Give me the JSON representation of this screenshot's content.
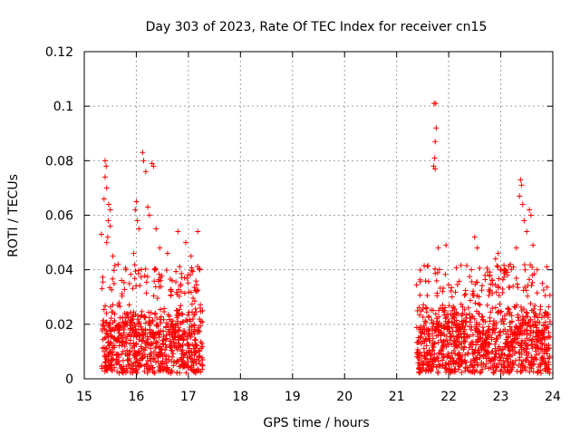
{
  "chart_data": {
    "type": "scatter",
    "title": "Day 303 of 2023, Rate Of TEC Index for receiver cn15",
    "xlabel": "GPS time / hours",
    "ylabel": "ROTI / TECUs",
    "xlim": [
      15,
      24
    ],
    "ylim": [
      0,
      0.12
    ],
    "xticks": [
      15,
      16,
      17,
      18,
      19,
      20,
      21,
      22,
      23,
      24
    ],
    "yticks": [
      0,
      0.02,
      0.04,
      0.06,
      0.08,
      0.1,
      0.12
    ],
    "ytick_labels": [
      "0",
      "0.02",
      "0.04",
      "0.06",
      "0.08",
      "0.1",
      "0.12"
    ],
    "grid": true,
    "marker": "+",
    "color": "#ff0000",
    "series": [
      {
        "name": "ROTI cn15",
        "segments": [
          {
            "x_start": 15.33,
            "x_end": 17.28,
            "typical_min": 0.002,
            "typical_max": 0.03
          },
          {
            "x_start": 21.38,
            "x_end": 23.95,
            "typical_min": 0.002,
            "typical_max": 0.03
          }
        ],
        "notable_points": [
          {
            "x": 15.4,
            "y": 0.08
          },
          {
            "x": 15.42,
            "y": 0.078
          },
          {
            "x": 15.4,
            "y": 0.074
          },
          {
            "x": 15.43,
            "y": 0.07
          },
          {
            "x": 15.38,
            "y": 0.066
          },
          {
            "x": 15.47,
            "y": 0.064
          },
          {
            "x": 15.5,
            "y": 0.062
          },
          {
            "x": 15.46,
            "y": 0.058
          },
          {
            "x": 15.5,
            "y": 0.056
          },
          {
            "x": 15.33,
            "y": 0.053
          },
          {
            "x": 15.45,
            "y": 0.052
          },
          {
            "x": 15.43,
            "y": 0.05
          },
          {
            "x": 15.55,
            "y": 0.045
          },
          {
            "x": 15.65,
            "y": 0.042
          },
          {
            "x": 15.8,
            "y": 0.04
          },
          {
            "x": 15.95,
            "y": 0.046
          },
          {
            "x": 15.98,
            "y": 0.062
          },
          {
            "x": 16.0,
            "y": 0.065
          },
          {
            "x": 16.02,
            "y": 0.058
          },
          {
            "x": 16.05,
            "y": 0.055
          },
          {
            "x": 16.12,
            "y": 0.083
          },
          {
            "x": 16.14,
            "y": 0.08
          },
          {
            "x": 16.18,
            "y": 0.076
          },
          {
            "x": 16.22,
            "y": 0.063
          },
          {
            "x": 16.3,
            "y": 0.079
          },
          {
            "x": 16.33,
            "y": 0.078
          },
          {
            "x": 16.25,
            "y": 0.06
          },
          {
            "x": 16.38,
            "y": 0.055
          },
          {
            "x": 16.45,
            "y": 0.048
          },
          {
            "x": 16.6,
            "y": 0.046
          },
          {
            "x": 16.8,
            "y": 0.054
          },
          {
            "x": 16.95,
            "y": 0.05
          },
          {
            "x": 17.05,
            "y": 0.045
          },
          {
            "x": 17.18,
            "y": 0.054
          },
          {
            "x": 17.22,
            "y": 0.04
          },
          {
            "x": 21.72,
            "y": 0.101
          },
          {
            "x": 21.75,
            "y": 0.101
          },
          {
            "x": 21.76,
            "y": 0.092
          },
          {
            "x": 21.74,
            "y": 0.087
          },
          {
            "x": 21.73,
            "y": 0.081
          },
          {
            "x": 21.71,
            "y": 0.078
          },
          {
            "x": 21.74,
            "y": 0.077
          },
          {
            "x": 21.95,
            "y": 0.049
          },
          {
            "x": 21.8,
            "y": 0.048
          },
          {
            "x": 22.5,
            "y": 0.052
          },
          {
            "x": 22.55,
            "y": 0.048
          },
          {
            "x": 22.95,
            "y": 0.046
          },
          {
            "x": 22.9,
            "y": 0.044
          },
          {
            "x": 23.3,
            "y": 0.048
          },
          {
            "x": 23.38,
            "y": 0.073
          },
          {
            "x": 23.4,
            "y": 0.071
          },
          {
            "x": 23.36,
            "y": 0.067
          },
          {
            "x": 23.42,
            "y": 0.064
          },
          {
            "x": 23.55,
            "y": 0.062
          },
          {
            "x": 23.58,
            "y": 0.06
          },
          {
            "x": 23.45,
            "y": 0.058
          },
          {
            "x": 23.5,
            "y": 0.054
          },
          {
            "x": 23.62,
            "y": 0.049
          },
          {
            "x": 23.7,
            "y": 0.04
          },
          {
            "x": 23.8,
            "y": 0.035
          },
          {
            "x": 23.9,
            "y": 0.024
          }
        ]
      }
    ]
  }
}
